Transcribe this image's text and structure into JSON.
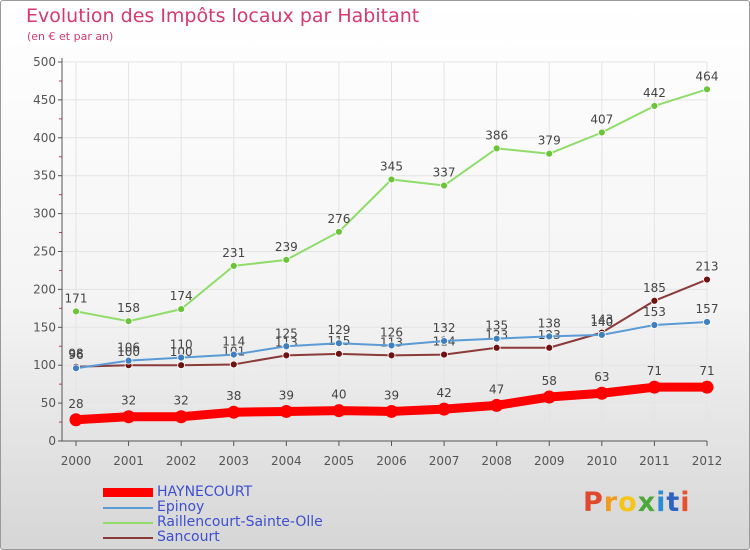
{
  "title": "Evolution des Impôts locaux par Habitant",
  "subtitle": "(en € et par an)",
  "logo_text": [
    "P",
    "r",
    "o",
    "x",
    "i",
    "t",
    "i"
  ],
  "logo_colors": [
    "#e0472c",
    "#f29a1e",
    "#f5c518",
    "#4ca83a",
    "#2a8cd6",
    "#2e63c2",
    "#e8502d"
  ],
  "colors": {
    "axis": "#555555",
    "grid": "#e4e4e4",
    "label": "#555555",
    "title": "#d6396c",
    "legend_text": "#3d4fd0"
  },
  "chart_data": {
    "type": "line",
    "title": "Evolution des Impôts locaux par Habitant",
    "subtitle": "(en € et par an)",
    "xlabel": "",
    "ylabel": "",
    "categories": [
      "2000",
      "2001",
      "2002",
      "2003",
      "2004",
      "2005",
      "2006",
      "2007",
      "2008",
      "2009",
      "2010",
      "2011",
      "2012"
    ],
    "ylim": [
      0,
      500
    ],
    "yticks": [
      0,
      50,
      100,
      150,
      200,
      250,
      300,
      350,
      400,
      450,
      500
    ],
    "grid": true,
    "legend_position": "bottom-left",
    "series": [
      {
        "name": "Raillencourt-Sainte-Olle",
        "color": "#8fdc6a",
        "marker": "#6cc43a",
        "values": [
          171,
          158,
          174,
          231,
          239,
          276,
          345,
          337,
          386,
          379,
          407,
          442,
          464
        ]
      },
      {
        "name": "Sancourt",
        "color": "#8b3a3a",
        "marker": "#6e1212",
        "values": [
          98,
          100,
          100,
          101,
          113,
          115,
          113,
          114,
          123,
          123,
          143,
          185,
          213
        ]
      },
      {
        "name": "Epinoy",
        "color": "#5b9bd5",
        "marker": "#3f7fbf",
        "values": [
          96,
          106,
          110,
          114,
          125,
          129,
          126,
          132,
          135,
          138,
          140,
          153,
          157
        ]
      },
      {
        "name": "HAYNECOURT",
        "color": "#ff0000",
        "marker": "#ff0000",
        "values": [
          28,
          32,
          32,
          38,
          39,
          40,
          39,
          42,
          47,
          58,
          63,
          71,
          71
        ]
      }
    ],
    "legend_order": [
      "HAYNECOURT",
      "Epinoy",
      "Raillencourt-Sainte-Olle",
      "Sancourt"
    ]
  }
}
